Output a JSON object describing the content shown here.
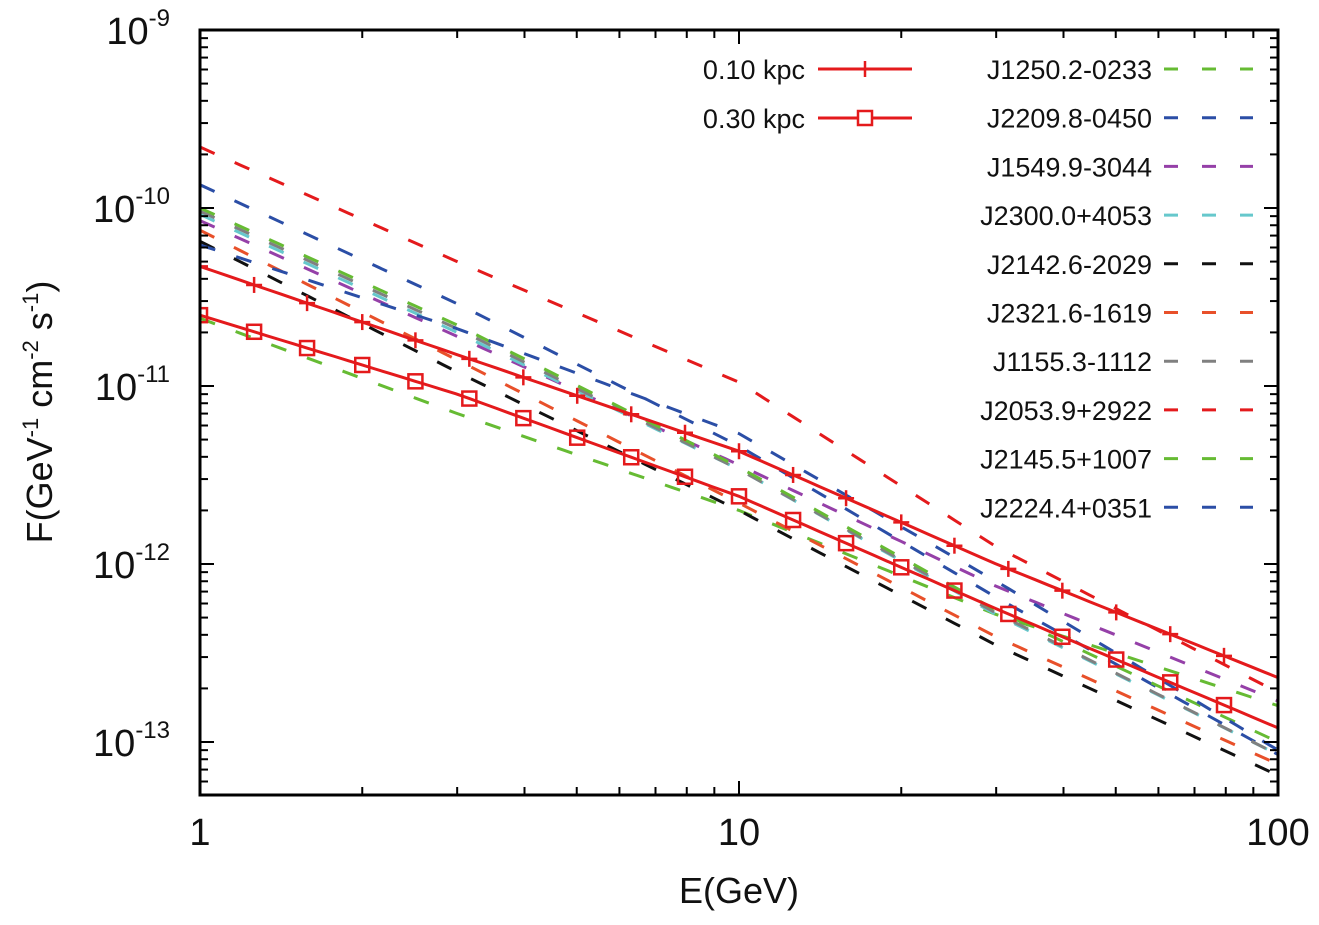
{
  "chart_data": {
    "type": "line",
    "title": "",
    "xlabel": "E(GeV)",
    "ylabel": "F(GeV^-1 cm^-2 s^-1)",
    "ylabel_parts": {
      "pre": "F(GeV",
      "s1": "-1",
      "mid": " cm",
      "s2": "-2",
      "mid2": " s",
      "s3": "-1",
      "post": ")"
    },
    "xscale": "log",
    "yscale": "log",
    "xlim": [
      1,
      100
    ],
    "ylim": [
      5e-14,
      1e-09
    ],
    "x_ticks": [
      {
        "value": 1,
        "label": "1"
      },
      {
        "value": 10,
        "label": "10"
      },
      {
        "value": 100,
        "label": "100"
      }
    ],
    "y_ticks": [
      {
        "value": 1e-09,
        "base": "10",
        "exp": "-9"
      },
      {
        "value": 1e-10,
        "base": "10",
        "exp": "-10"
      },
      {
        "value": 1e-11,
        "base": "10",
        "exp": "-11"
      },
      {
        "value": 1e-12,
        "base": "10",
        "exp": "-12"
      },
      {
        "value": 1e-13,
        "base": "10",
        "exp": "-13"
      }
    ],
    "legend_position": "top-right",
    "grid": false,
    "series": [
      {
        "name": "0.10 kpc",
        "style": "solid",
        "marker": "plus",
        "color": "#e41a1c",
        "x": [
          1,
          3,
          10,
          30,
          100
        ],
        "y": [
          4.7e-11,
          1.5e-11,
          4.3e-12,
          1e-12,
          2.3e-13
        ],
        "marker_x": [
          1,
          1.26,
          1.58,
          2,
          2.51,
          3.16,
          3.98,
          5.01,
          6.31,
          7.94,
          10,
          12.6,
          15.8,
          20,
          25.1,
          31.6,
          39.8,
          50.1,
          63.1,
          79.4
        ]
      },
      {
        "name": "0.30 kpc",
        "style": "solid",
        "marker": "square",
        "color": "#e41a1c",
        "x": [
          1,
          3,
          10,
          30,
          100
        ],
        "y": [
          2.5e-11,
          9e-12,
          2.4e-12,
          5.6e-13,
          1.2e-13
        ],
        "marker_x": [
          1,
          1.26,
          1.58,
          2,
          2.51,
          3.16,
          3.98,
          5.01,
          6.31,
          7.94,
          10,
          12.6,
          15.8,
          20,
          25.1,
          31.6,
          39.8,
          50.1,
          63.1,
          79.4
        ]
      },
      {
        "name": "J1250.2-0233",
        "style": "dashed",
        "color": "#66bb33",
        "x": [
          1,
          3,
          10,
          30,
          100
        ],
        "y": [
          2.4e-11,
          7e-12,
          2e-12,
          5.2e-13,
          1.6e-13
        ]
      },
      {
        "name": "J2209.8-0450",
        "style": "dashed",
        "color": "#2b4ea6",
        "x": [
          1,
          3,
          10,
          30,
          100
        ],
        "y": [
          1.35e-10,
          2.9e-11,
          4.6e-12,
          6.5e-13,
          8.5e-14
        ]
      },
      {
        "name": "J1549.9-3044",
        "style": "dashed",
        "color": "#9540a8",
        "x": [
          1,
          3,
          10,
          30,
          100
        ],
        "y": [
          8.5e-11,
          1.9e-11,
          3.6e-12,
          7.5e-13,
          1.7e-13
        ]
      },
      {
        "name": "J2300.0+4053",
        "style": "dashed",
        "color": "#66c8cc",
        "x": [
          1,
          3,
          10,
          30,
          100
        ],
        "y": [
          9.2e-11,
          2e-11,
          3.4e-12,
          5.2e-13,
          8.5e-14
        ]
      },
      {
        "name": "J2142.6-2029",
        "style": "dashed",
        "color": "#111111",
        "x": [
          1,
          3,
          10,
          30,
          100
        ],
        "y": [
          6.5e-11,
          1.2e-11,
          2e-12,
          3.5e-13,
          6.5e-14
        ]
      },
      {
        "name": "J2321.6-1619",
        "style": "dashed",
        "color": "#e8502a",
        "x": [
          1,
          3,
          10,
          30,
          100
        ],
        "y": [
          7.5e-11,
          1.4e-11,
          2.2e-12,
          3.9e-13,
          7.5e-14
        ]
      },
      {
        "name": "J1155.3-1112",
        "style": "dashed",
        "color": "#808080",
        "x": [
          1,
          3,
          10,
          30,
          100
        ],
        "y": [
          9.6e-11,
          2.1e-11,
          3.4e-12,
          5.3e-13,
          8.5e-14
        ]
      },
      {
        "name": "J2053.9+2922",
        "style": "dashed",
        "color": "#e41a1c",
        "x": [
          1,
          3,
          10,
          30,
          100
        ],
        "y": [
          2.2e-10,
          5e-11,
          1.05e-11,
          1.25e-12,
          1.9e-13
        ]
      },
      {
        "name": "J2145.5+1007",
        "style": "dashed",
        "color": "#66bb33",
        "x": [
          1,
          3,
          10,
          30,
          100
        ],
        "y": [
          1e-10,
          2.2e-11,
          3.5e-12,
          5.5e-13,
          1e-13
        ]
      },
      {
        "name": "J2224.4+0351",
        "style": "dashed",
        "color": "#2b4ea6",
        "x": [
          1,
          3,
          10,
          30,
          100
        ],
        "y": [
          6.2e-11,
          2.1e-11,
          5.4e-12,
          8e-13,
          9e-14
        ]
      }
    ]
  }
}
